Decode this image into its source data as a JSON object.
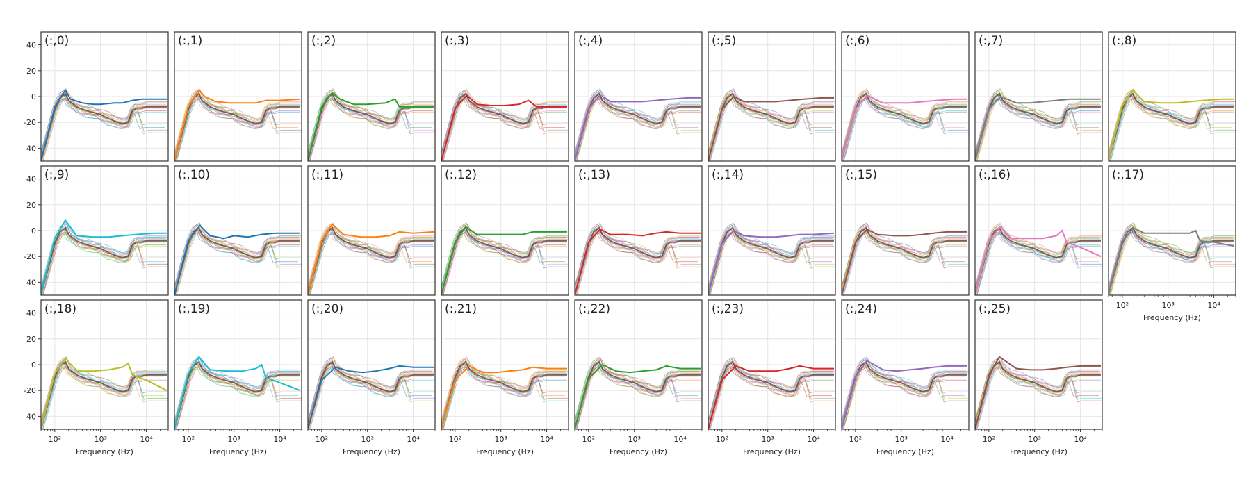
{
  "chart_data": {
    "type": "line",
    "grid": true,
    "xscale": "log",
    "xlabel": "Frequency (Hz)",
    "xlim_hz": [
      50,
      30000
    ],
    "ylim": [
      -50,
      50
    ],
    "ytick_labels": [
      "40",
      "20",
      "0",
      "-20",
      "-40"
    ],
    "yticks": [
      40,
      20,
      0,
      -20,
      -40
    ],
    "xtick_labels": [
      "10²",
      "10³",
      "10⁴"
    ],
    "xticks_hz": [
      100,
      1000,
      10000
    ],
    "layout": "3 rows x 9 columns, 26 subplots (0-25)",
    "colors": [
      "#1f77b4",
      "#ff7f0e",
      "#2ca02c",
      "#d62728",
      "#9467bd",
      "#8c564b",
      "#e377c2",
      "#7f7f7f",
      "#bcbd22",
      "#17becf"
    ],
    "background_curve_frequencies_hz": [
      50,
      100,
      130,
      170,
      200,
      300,
      500,
      800,
      1000,
      1500,
      2000,
      3000,
      4000,
      5000,
      6000,
      8000,
      10000,
      15000,
      20000,
      28000
    ],
    "background_curve_levels_db": [
      -50,
      -10,
      -1,
      2,
      -3,
      -8,
      -11,
      -13,
      -14,
      -17,
      -19,
      -21,
      -20,
      -11,
      -9,
      -9,
      -8,
      -8,
      -8,
      -8
    ],
    "subplots": [
      {
        "label": "(:,0)",
        "highlight": {
          "x_hz": [
            50,
            100,
            170,
            220,
            400,
            700,
            1000,
            2000,
            3000,
            5000,
            8000,
            15000,
            28000
          ],
          "y_db": [
            -50,
            -8,
            5,
            -2,
            -5,
            -6,
            -6,
            -5,
            -5,
            -3,
            -2,
            -2,
            -2
          ]
        }
      },
      {
        "label": "(:,1)",
        "highlight": {
          "x_hz": [
            50,
            100,
            170,
            230,
            400,
            800,
            1500,
            3000,
            5000,
            10000,
            28000
          ],
          "y_db": [
            -50,
            -8,
            5,
            0,
            -4,
            -5,
            -5,
            -5,
            -3,
            -3,
            -2
          ]
        }
      },
      {
        "label": "(:,2)",
        "highlight": {
          "x_hz": [
            50,
            100,
            170,
            250,
            500,
            1000,
            2500,
            4000,
            5000,
            8000,
            28000
          ],
          "y_db": [
            -50,
            -8,
            3,
            -2,
            -6,
            -6,
            -5,
            -2,
            -8,
            -8,
            -8
          ]
        }
      },
      {
        "label": "(:,3)",
        "highlight": {
          "x_hz": [
            50,
            100,
            180,
            300,
            600,
            1200,
            2500,
            4000,
            6000,
            10000,
            28000
          ],
          "y_db": [
            -50,
            -9,
            1,
            -6,
            -7,
            -7,
            -6,
            -3,
            -8,
            -8,
            -8
          ]
        }
      },
      {
        "label": "(:,4)",
        "highlight": {
          "x_hz": [
            50,
            100,
            180,
            300,
            600,
            1500,
            3000,
            6000,
            15000,
            28000
          ],
          "y_db": [
            -50,
            -9,
            1,
            -4,
            -4,
            -4,
            -3,
            -2,
            -1,
            -1
          ]
        }
      },
      {
        "label": "(:,5)",
        "highlight": {
          "x_hz": [
            50,
            100,
            180,
            300,
            700,
            1500,
            3000,
            6000,
            15000,
            28000
          ],
          "y_db": [
            -50,
            -10,
            0,
            -4,
            -4,
            -4,
            -3,
            -2,
            -1,
            -1
          ]
        }
      },
      {
        "label": "(:,6)",
        "highlight": {
          "x_hz": [
            50,
            100,
            180,
            400,
            800,
            1500,
            3000,
            6000,
            15000,
            28000
          ],
          "y_db": [
            -50,
            -10,
            1,
            -5,
            -5,
            -5,
            -4,
            -3,
            -2,
            -2
          ]
        }
      },
      {
        "label": "(:,7)",
        "highlight": {
          "x_hz": [
            50,
            100,
            180,
            400,
            800,
            1500,
            3000,
            6000,
            15000,
            28000
          ],
          "y_db": [
            -50,
            -10,
            0,
            -5,
            -5,
            -4,
            -3,
            -2,
            -2,
            -2
          ]
        }
      },
      {
        "label": "(:,8)",
        "highlight": {
          "x_hz": [
            50,
            100,
            170,
            300,
            700,
            1500,
            3000,
            6000,
            15000,
            28000
          ],
          "y_db": [
            -50,
            -7,
            5,
            -4,
            -5,
            -5,
            -4,
            -3,
            -2,
            -2
          ]
        }
      },
      {
        "label": "(:,9)",
        "highlight": {
          "x_hz": [
            50,
            100,
            170,
            300,
            700,
            1500,
            3000,
            6000,
            15000,
            28000
          ],
          "y_db": [
            -50,
            -6,
            8,
            -4,
            -5,
            -5,
            -4,
            -3,
            -2,
            -2
          ]
        }
      },
      {
        "label": "(:,10)",
        "highlight": {
          "x_hz": [
            50,
            100,
            180,
            300,
            600,
            1000,
            2000,
            4000,
            8000,
            28000
          ],
          "y_db": [
            -50,
            -8,
            4,
            -4,
            -6,
            -4,
            -5,
            -3,
            -2,
            -2
          ]
        }
      },
      {
        "label": "(:,11)",
        "highlight": {
          "x_hz": [
            50,
            100,
            170,
            300,
            700,
            1500,
            3000,
            5000,
            10000,
            28000
          ],
          "y_db": [
            -50,
            -8,
            5,
            -3,
            -5,
            -5,
            -4,
            -1,
            -2,
            -1
          ]
        }
      },
      {
        "label": "(:,12)",
        "highlight": {
          "x_hz": [
            50,
            100,
            170,
            300,
            700,
            1500,
            3000,
            5000,
            10000,
            28000
          ],
          "y_db": [
            -50,
            -9,
            3,
            -3,
            -3,
            -3,
            -3,
            -1,
            -1,
            -1
          ]
        }
      },
      {
        "label": "(:,13)",
        "highlight": {
          "x_hz": [
            50,
            100,
            180,
            300,
            700,
            1500,
            3000,
            5000,
            10000,
            28000
          ],
          "y_db": [
            -50,
            -9,
            1,
            -3,
            -3,
            -4,
            -2,
            -1,
            -2,
            -2
          ]
        }
      },
      {
        "label": "(:,14)",
        "highlight": {
          "x_hz": [
            50,
            100,
            180,
            300,
            700,
            1500,
            3000,
            5000,
            10000,
            28000
          ],
          "y_db": [
            -50,
            -10,
            0,
            -4,
            -5,
            -5,
            -4,
            -3,
            -3,
            -2
          ]
        }
      },
      {
        "label": "(:,15)",
        "highlight": {
          "x_hz": [
            50,
            100,
            180,
            300,
            700,
            1500,
            3000,
            5000,
            10000,
            28000
          ],
          "y_db": [
            -50,
            -9,
            1,
            -3,
            -4,
            -4,
            -3,
            -2,
            -1,
            -1
          ]
        }
      },
      {
        "label": "(:,16)",
        "highlight": {
          "x_hz": [
            50,
            100,
            180,
            300,
            700,
            1500,
            3000,
            4000,
            5000,
            10000,
            28000
          ],
          "y_db": [
            -50,
            -8,
            3,
            -6,
            -6,
            -6,
            -4,
            0,
            -9,
            -13,
            -20
          ]
        }
      },
      {
        "label": "(:,17)",
        "highlight": {
          "x_hz": [
            50,
            100,
            180,
            300,
            700,
            1500,
            3000,
            4000,
            5000,
            10000,
            28000
          ],
          "y_db": [
            -50,
            -8,
            2,
            -2,
            -2,
            -2,
            -2,
            0,
            -8,
            -9,
            -12
          ]
        }
      },
      {
        "label": "(:,18)",
        "highlight": {
          "x_hz": [
            50,
            100,
            170,
            300,
            700,
            1500,
            3000,
            4000,
            5000,
            10000,
            28000
          ],
          "y_db": [
            -50,
            -7,
            5,
            -5,
            -5,
            -4,
            -2,
            1,
            -8,
            -12,
            -20
          ]
        }
      },
      {
        "label": "(:,19)",
        "highlight": {
          "x_hz": [
            50,
            100,
            170,
            300,
            700,
            1500,
            3000,
            4000,
            5000,
            10000,
            28000
          ],
          "y_db": [
            -50,
            -7,
            6,
            -4,
            -5,
            -5,
            -3,
            0,
            -10,
            -14,
            -20
          ]
        }
      },
      {
        "label": "(:,20)",
        "highlight": {
          "x_hz": [
            50,
            100,
            200,
            400,
            800,
            1500,
            3000,
            5000,
            10000,
            28000
          ],
          "y_db": [
            -50,
            -12,
            -2,
            -5,
            -6,
            -5,
            -3,
            -1,
            -2,
            -2
          ]
        }
      },
      {
        "label": "(:,21)",
        "highlight": {
          "x_hz": [
            50,
            100,
            200,
            400,
            800,
            1500,
            3000,
            5000,
            10000,
            28000
          ],
          "y_db": [
            -50,
            -12,
            -1,
            -6,
            -6,
            -5,
            -4,
            -2,
            -3,
            -3
          ]
        }
      },
      {
        "label": "(:,22)",
        "highlight": {
          "x_hz": [
            50,
            100,
            200,
            400,
            800,
            1500,
            3000,
            5000,
            10000,
            28000
          ],
          "y_db": [
            -50,
            -11,
            0,
            -5,
            -6,
            -5,
            -4,
            -1,
            -3,
            -3
          ]
        }
      },
      {
        "label": "(:,23)",
        "highlight": {
          "x_hz": [
            50,
            100,
            200,
            400,
            800,
            1500,
            3000,
            5000,
            10000,
            28000
          ],
          "y_db": [
            -50,
            -12,
            -1,
            -5,
            -5,
            -5,
            -3,
            -1,
            -3,
            -3
          ]
        }
      },
      {
        "label": "(:,24)",
        "highlight": {
          "x_hz": [
            50,
            100,
            180,
            400,
            800,
            1500,
            3000,
            5000,
            10000,
            28000
          ],
          "y_db": [
            -50,
            -9,
            3,
            -4,
            -5,
            -4,
            -3,
            -2,
            -1,
            -1
          ]
        }
      },
      {
        "label": "(:,25)",
        "highlight": {
          "x_hz": [
            50,
            100,
            170,
            400,
            800,
            1500,
            3000,
            5000,
            10000,
            28000
          ],
          "y_db": [
            -50,
            -8,
            6,
            -3,
            -4,
            -4,
            -3,
            -2,
            -1,
            -1
          ]
        }
      }
    ]
  }
}
